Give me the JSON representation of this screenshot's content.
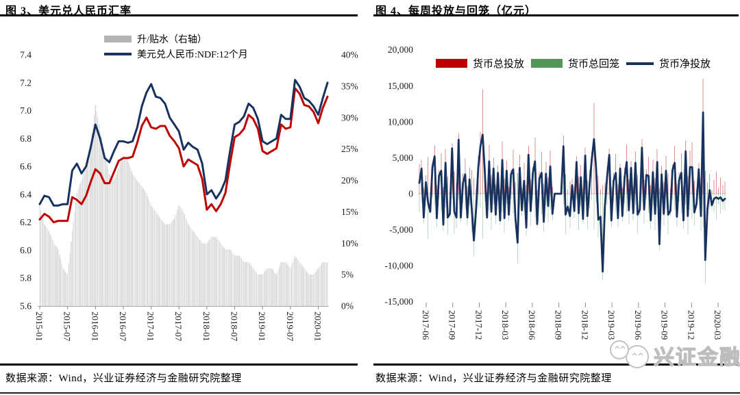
{
  "colors": {
    "navy": "#17325f",
    "red": "#c00000",
    "green": "#54965a",
    "gray_bar": "#d6d6d6",
    "legend_gray": "#b3b3b3",
    "axis_gray": "#a6a6a6",
    "watermark_gray": "#c2c2c2"
  },
  "left_chart": {
    "title": "图 3、美元兑人民币汇率",
    "legend": {
      "bar_label": "升/贴水（右轴）",
      "line_label": "美元兑人民币:NDF:12个月"
    },
    "source": "数据来源：Wind，兴业证券经济与金融研究院整理",
    "chart_data": {
      "type": "line+bar",
      "frequency": "monthly",
      "x_start": "2015-01",
      "x_end": "2020-03",
      "x_tick_labels": [
        "2015-01",
        "2015-07",
        "2016-01",
        "2016-07",
        "2017-01",
        "2017-07",
        "2018-01",
        "2018-07",
        "2019-01",
        "2019-07",
        "2020-01"
      ],
      "left_axis": {
        "min": 5.6,
        "max": 7.4,
        "tick_labels": [
          "7.4",
          "7.2",
          "7.0",
          "6.8",
          "6.6",
          "6.4",
          "6.2",
          "6.0",
          "5.8",
          "5.6"
        ]
      },
      "right_axis": {
        "min": 0,
        "max": 40,
        "unit": "%",
        "tick_labels": [
          "40%",
          "35%",
          "30%",
          "25%",
          "20%",
          "15%",
          "10%",
          "5%",
          "0%"
        ]
      },
      "series": [
        {
          "id": "premium-discount-bars",
          "type": "bar",
          "axis": "right",
          "legend_label": "升/贴水（右轴）",
          "color": "#b3b3b3",
          "values": [
            16,
            13,
            12,
            10,
            9,
            6,
            5,
            12,
            18,
            20,
            22,
            26,
            32,
            28,
            24,
            21,
            20,
            22,
            24,
            23,
            21,
            20,
            19,
            18,
            16,
            15,
            14,
            13,
            13,
            14,
            16,
            15,
            13,
            12,
            11,
            10,
            10,
            11,
            11,
            10,
            9,
            9,
            8,
            8,
            7,
            7,
            6,
            5,
            5,
            6,
            6,
            5,
            7,
            7,
            6,
            8,
            7,
            6,
            5,
            5,
            6,
            7,
            7
          ]
        },
        {
          "id": "usdcny-spot-line",
          "type": "line",
          "axis": "left",
          "color": "#c00000",
          "values": [
            6.22,
            6.26,
            6.24,
            6.2,
            6.21,
            6.21,
            6.21,
            6.38,
            6.36,
            6.33,
            6.39,
            6.49,
            6.58,
            6.55,
            6.48,
            6.48,
            6.56,
            6.64,
            6.66,
            6.66,
            6.67,
            6.77,
            6.89,
            6.95,
            6.88,
            6.87,
            6.89,
            6.89,
            6.82,
            6.78,
            6.73,
            6.6,
            6.65,
            6.63,
            6.61,
            6.51,
            6.29,
            6.33,
            6.28,
            6.33,
            6.41,
            6.62,
            6.81,
            6.83,
            6.87,
            6.97,
            6.94,
            6.87,
            6.71,
            6.69,
            6.71,
            6.73,
            6.9,
            6.87,
            6.88,
            7.16,
            7.12,
            7.04,
            7.03,
            6.99,
            6.91,
            7.02,
            7.1
          ]
        },
        {
          "id": "usdcny-ndf-12m-line",
          "type": "line",
          "axis": "left",
          "legend_label": "美元兑人民币:NDF:12个月",
          "color": "#17325f",
          "values": [
            6.33,
            6.39,
            6.38,
            6.32,
            6.32,
            6.33,
            6.33,
            6.57,
            6.62,
            6.55,
            6.6,
            6.74,
            6.9,
            6.8,
            6.66,
            6.63,
            6.71,
            6.78,
            6.78,
            6.77,
            6.78,
            6.88,
            7.03,
            7.13,
            7.19,
            7.1,
            7.09,
            7.05,
            6.95,
            6.9,
            6.85,
            6.72,
            6.77,
            6.74,
            6.72,
            6.62,
            6.4,
            6.43,
            6.37,
            6.42,
            6.5,
            6.71,
            6.9,
            6.92,
            6.96,
            7.05,
            7.02,
            6.94,
            6.78,
            6.76,
            6.78,
            6.8,
            6.97,
            6.94,
            6.94,
            7.22,
            7.17,
            7.09,
            7.07,
            7.03,
            6.97,
            7.09,
            7.2
          ]
        }
      ]
    }
  },
  "right_chart": {
    "title": "图 4、每周投放与回笼（亿元）",
    "legend": {
      "injection_label": "货币总投放",
      "withdrawal_label": "货币总回笼",
      "net_label": "货币净投放"
    },
    "source": "数据来源：Wind，兴业证券经济与金融研究院整理",
    "chart_data": {
      "type": "bar+line",
      "frequency": "weekly",
      "x_start": "2017-06",
      "x_end": "2020-03",
      "x_tick_labels": [
        "2017-06",
        "2017-09",
        "2017-12",
        "2018-03",
        "2018-06",
        "2018-09",
        "2018-12",
        "2019-03",
        "2019-06",
        "2019-09",
        "2019-12",
        "2020-03"
      ],
      "y_axis": {
        "min": -15000,
        "max": 20000,
        "tick_labels": [
          "20,000",
          "15,000",
          "10,000",
          "5,000",
          "0",
          "-5,000",
          "-10,000",
          "-15,000"
        ]
      },
      "series": [
        {
          "id": "total-injection-bars",
          "type": "bar",
          "legend_label": "货币总投放",
          "color": "#c00000",
          "values": [
            4100,
            4700,
            800,
            2500,
            5100,
            300,
            4200,
            6700,
            1200,
            3300,
            5600,
            900,
            6200,
            2400,
            400,
            7000,
            3100,
            1500,
            8400,
            600,
            2800,
            4900,
            1100,
            3600,
            3300,
            2200,
            700,
            5300,
            8600,
            14500,
            4100,
            300,
            6800,
            2600,
            5000,
            1300,
            3900,
            600,
            7300,
            2100,
            4600,
            900,
            3400,
            6100,
            1600,
            2900,
            5400,
            800,
            4300,
            1200,
            6600,
            2000,
            3700,
            7800,
            500,
            3100,
            5800,
            1400,
            4400,
            2300,
            6000,
            900,
            0,
            0,
            0,
            0,
            8100,
            2700,
            600,
            1700,
            2100,
            1000,
            5200,
            2400,
            4000,
            700,
            6400,
            1800,
            3300,
            5700,
            12600,
            4800,
            2500,
            600,
            1200,
            1500,
            3800,
            6300,
            900,
            2900,
            5500,
            1300,
            4200,
            800,
            3600,
            6900,
            2000,
            4500,
            1000,
            5900,
            2600,
            700,
            7600,
            1900,
            3400,
            5100,
            1200,
            4700,
            2200,
            6200,
            800,
            3900,
            1600,
            5300,
            2800,
            700,
            4100,
            6600,
            1400,
            3000,
            5600,
            1100,
            7400,
            2500,
            6000,
            7200,
            1800,
            600,
            4300,
            2100,
            16000,
            3200,
            1500,
            2700,
            500,
            1900,
            3100,
            800,
            2300,
            1200,
            1700
          ]
        },
        {
          "id": "total-withdrawal-bars",
          "type": "bar",
          "legend_label": "货币总回笼",
          "color": "#54965a",
          "sign": "plotted-downward",
          "values": [
            2600,
            1200,
            4100,
            900,
            6300,
            2800,
            500,
            1500,
            4600,
            800,
            2400,
            5200,
            1900,
            5700,
            3200,
            700,
            5600,
            4800,
            900,
            3900,
            1300,
            2200,
            4400,
            1600,
            5400,
            8700,
            2900,
            1700,
            2000,
            6300,
            1100,
            3600,
            2300,
            5100,
            1500,
            4200,
            1000,
            4300,
            2600,
            5500,
            1400,
            3800,
            700,
            2700,
            4900,
            9700,
            1800,
            3100,
            2500,
            5900,
            1200,
            4400,
            800,
            3300,
            4700,
            1000,
            2900,
            5300,
            1600,
            4000,
            2200,
            3700,
            0,
            0,
            0,
            0,
            1500,
            5600,
            2400,
            4800,
            900,
            3400,
            800,
            5100,
            1700,
            4200,
            1100,
            4900,
            2000,
            900,
            5000,
            1300,
            6100,
            3800,
            12000,
            3300,
            1500,
            900,
            4600,
            1100,
            2600,
            4700,
            700,
            3900,
            1400,
            2500,
            4300,
            900,
            3700,
            1600,
            5500,
            2900,
            1200,
            4100,
            800,
            2600,
            4900,
            1700,
            5000,
            1800,
            7800,
            1200,
            4400,
            2100,
            5700,
            3100,
            800,
            2300,
            4600,
            1100,
            2700,
            4800,
            1500,
            5600,
            2300,
            3500,
            4400,
            2000,
            900,
            5200,
            4700,
            12400,
            3600,
            2200,
            2100,
            2600,
            3600,
            1500,
            2800,
            2200,
            2400
          ]
        },
        {
          "id": "net-injection-line",
          "type": "line",
          "legend_label": "货币净投放",
          "color": "#17325f",
          "definition": "injection_minus_withdrawal"
        }
      ]
    }
  },
  "watermark": {
    "text": "兴证金融",
    "icon": "wechat-chat-bubbles-icon"
  }
}
